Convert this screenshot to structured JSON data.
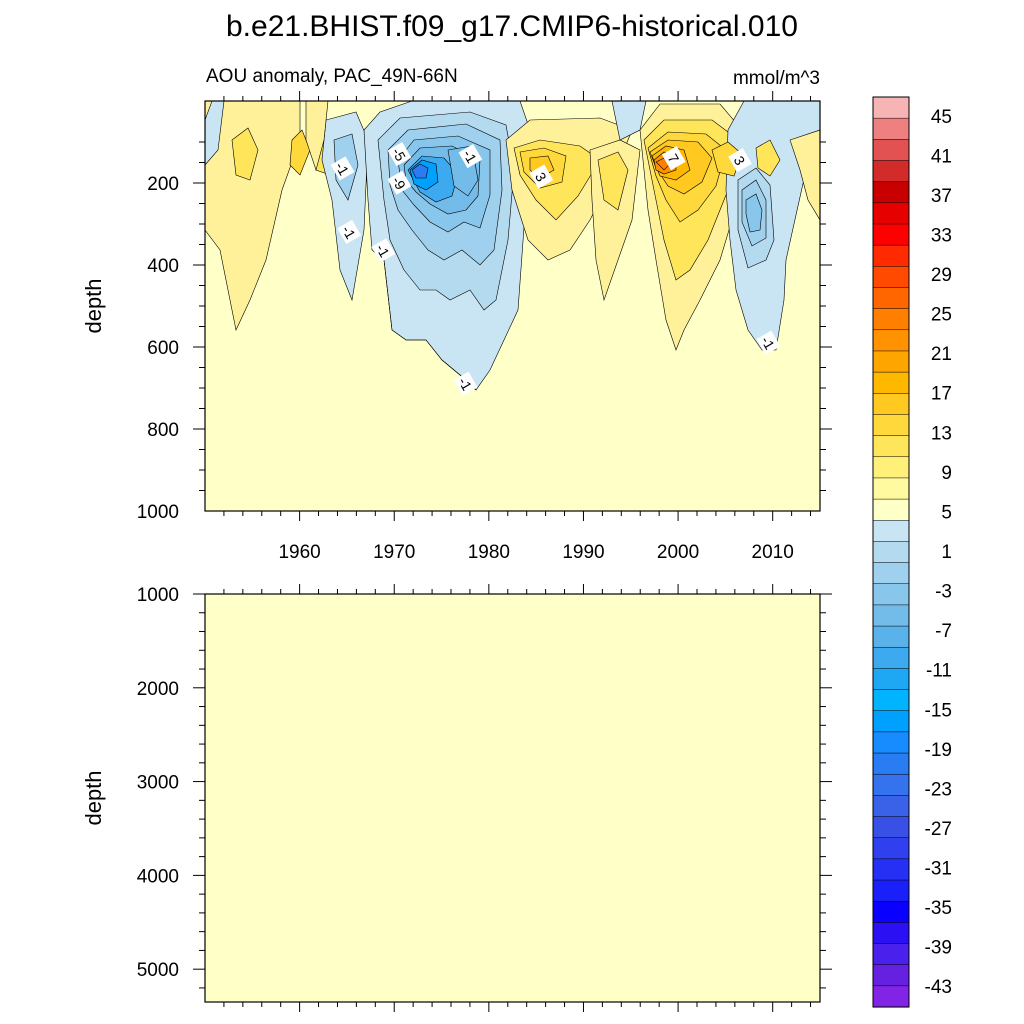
{
  "chart_data": [
    {
      "type": "heatmap",
      "title": "b.e21.BHIST.f09_g17.CMIP6-historical.010",
      "subtitle_left": "AOU anomaly, PAC_49N-66N",
      "subtitle_right": "mmol/m^3",
      "xlabel": "",
      "ylabel": "depth",
      "xlim": [
        1950,
        2015
      ],
      "ylim": [
        1000,
        0
      ],
      "xticks": [
        "1960",
        "1970",
        "1980",
        "1990",
        "2000",
        "2010"
      ],
      "xtick_values": [
        1960,
        1970,
        1980,
        1990,
        2000,
        2010
      ],
      "yticks": [
        "200",
        "400",
        "600",
        "800",
        "1000"
      ],
      "ytick_values": [
        200,
        400,
        600,
        800,
        1000
      ],
      "contour_labels": [
        {
          "text": "-1",
          "x": 1964.5,
          "y": 165
        },
        {
          "text": "-5",
          "x": 1970.5,
          "y": 130
        },
        {
          "text": "-9",
          "x": 1970.5,
          "y": 200
        },
        {
          "text": "-1",
          "x": 1965.2,
          "y": 320
        },
        {
          "text": "-1",
          "x": 1968.8,
          "y": 365
        },
        {
          "text": "-1",
          "x": 1978.0,
          "y": 135
        },
        {
          "text": "3",
          "x": 1985.5,
          "y": 185
        },
        {
          "text": "7",
          "x": 1999.5,
          "y": 140
        },
        {
          "text": "3",
          "x": 2006.5,
          "y": 145
        },
        {
          "text": "-1",
          "x": 1977.5,
          "y": 690
        },
        {
          "text": "-1",
          "x": 2009.5,
          "y": 590
        }
      ],
      "anomaly_features": [
        {
          "sign": "negative",
          "year_range": [
            1966,
            1983
          ],
          "depth_range": [
            60,
            700
          ],
          "peak": -15
        },
        {
          "sign": "negative",
          "year_range": [
            2005,
            2011
          ],
          "depth_range": [
            60,
            600
          ],
          "peak": -9
        },
        {
          "sign": "positive",
          "year_range": [
            1995,
            2004
          ],
          "depth_range": [
            60,
            380
          ],
          "peak": 9
        },
        {
          "sign": "positive",
          "year_range": [
            1983,
            1990
          ],
          "depth_range": [
            60,
            260
          ],
          "peak": 5
        }
      ]
    },
    {
      "type": "heatmap",
      "ylabel": "depth",
      "xlim": [
        1950,
        2015
      ],
      "ylim": [
        5350,
        1000
      ],
      "yticks": [
        "1000",
        "2000",
        "3000",
        "4000",
        "5000"
      ],
      "ytick_values": [
        1000,
        2000,
        3000,
        4000,
        5000
      ],
      "values_note": "uniform"
    }
  ],
  "colorbar": {
    "labels": [
      "45",
      "41",
      "37",
      "33",
      "29",
      "25",
      "21",
      "17",
      "13",
      "9",
      "5",
      "1",
      "-3",
      "-7",
      "-11",
      "-15",
      "-19",
      "-23",
      "-27",
      "-31",
      "-35",
      "-39",
      "-43"
    ],
    "colors": [
      "#f7b4b4",
      "#ee8080",
      "#e25252",
      "#d32a2a",
      "#c80000",
      "#e60000",
      "#ff0000",
      "#ff2a00",
      "#ff4a00",
      "#ff6600",
      "#ff7f00",
      "#ff9200",
      "#ffa500",
      "#ffb800",
      "#ffc922",
      "#ffd93b",
      "#ffe55a",
      "#fff07a",
      "#fff9a0",
      "#ffffc8",
      "#c9e4f2",
      "#b4daf0",
      "#9fd0ee",
      "#89c6ec",
      "#73bcea",
      "#5ab2ea",
      "#3daaf0",
      "#1ea8f4",
      "#00b4ff",
      "#00a0ff",
      "#168cff",
      "#2a7cf2",
      "#3472ee",
      "#3a62e8",
      "#3850e6",
      "#3040ee",
      "#2630f4",
      "#1a20fa",
      "#0a00ff",
      "#2c10f4",
      "#4a20ec",
      "#6620e0",
      "#8224e6"
    ],
    "unit": "mmol/m^3"
  }
}
